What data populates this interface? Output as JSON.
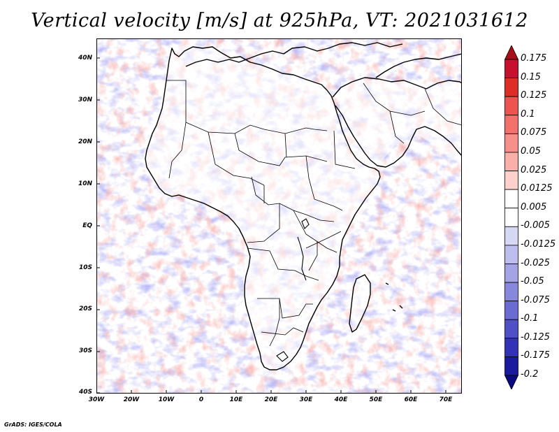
{
  "title": "Vertical velocity [m/s] at 925hPa, VT: 2021031612",
  "credit": "GrADS: IGES/COLA",
  "map": {
    "region": "Africa and Arabian Peninsula",
    "lat_range": [
      -40,
      45
    ],
    "lon_range": [
      -30,
      75
    ],
    "lat_labels": [
      "40N",
      "30N",
      "20N",
      "10N",
      "EQ",
      "10S",
      "20S",
      "30S",
      "40S"
    ],
    "lon_labels": [
      "30W",
      "20W",
      "10W",
      "0",
      "10E",
      "20E",
      "30E",
      "40E",
      "50E",
      "60E",
      "70E"
    ]
  },
  "colorbar": {
    "labels": [
      "0.175",
      "0.15",
      "0.125",
      "0.1",
      "0.075",
      "0.05",
      "0.025",
      "0.0125",
      "0.005",
      "-0.005",
      "-0.0125",
      "-0.025",
      "-0.05",
      "-0.075",
      "-0.1",
      "-0.125",
      "-0.175",
      "-0.2"
    ],
    "colors": [
      "#a50f15",
      "#c8102e",
      "#de2d26",
      "#ef5350",
      "#f4706a",
      "#f7908a",
      "#faafa9",
      "#fdd0cc",
      "#ffffff",
      "#ffffff",
      "#d6d6f5",
      "#bdbdee",
      "#a3a3e6",
      "#8787dd",
      "#6b6bd4",
      "#4f4fc8",
      "#3232b8",
      "#1a1aa0",
      "#0a0a80"
    ]
  }
}
